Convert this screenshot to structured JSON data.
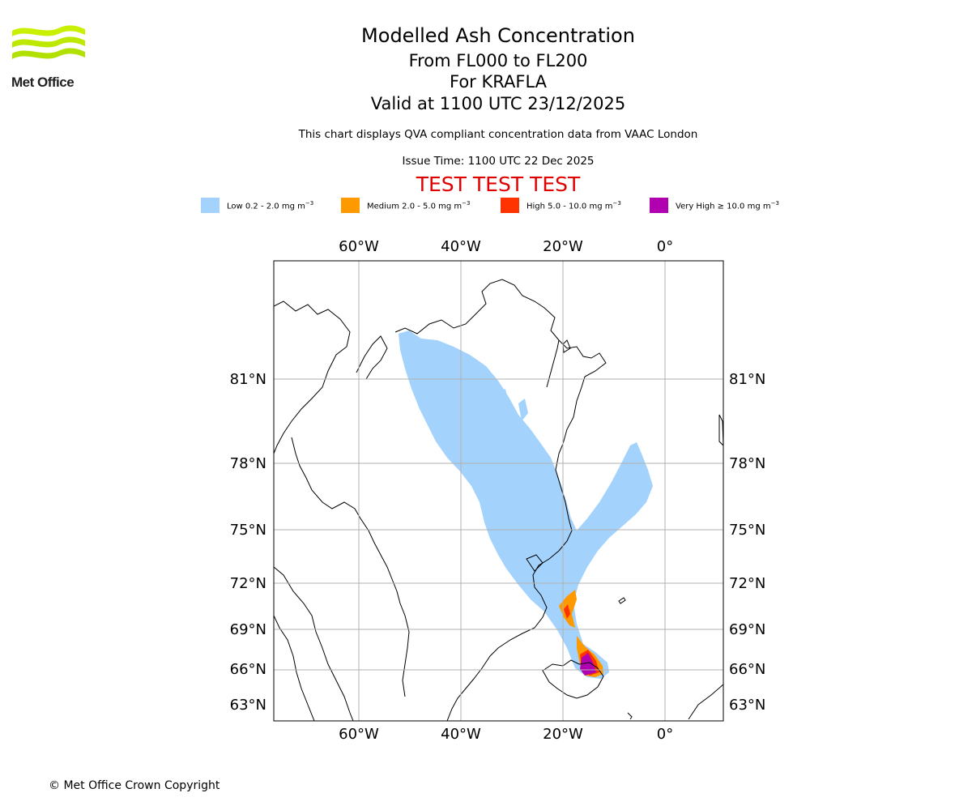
{
  "logo": {
    "text": "Met Office",
    "colors": [
      "#c8f000",
      "#a6d400"
    ]
  },
  "header": {
    "title": "Modelled Ash Concentration",
    "levels": "From FL000 to FL200",
    "volcano": "For KRAFLA",
    "valid": "Valid at 1100 UTC 23/12/2025",
    "description": "This chart displays QVA compliant concentration data from VAAC London",
    "issue_time": "Issue Time: 1100 UTC 22 Dec 2025",
    "test_banner": "TEST TEST TEST"
  },
  "legend": [
    {
      "label": "Low 0.2 - 2.0 mg m",
      "unit_exp": "−3",
      "color": "#a3d2fc"
    },
    {
      "label": "Medium 2.0 - 5.0 mg m",
      "unit_exp": "−3",
      "color": "#ff9900"
    },
    {
      "label": "High 5.0 - 10.0 mg m",
      "unit_exp": "−3",
      "color": "#ff3300"
    },
    {
      "label": "Very High  ≥  10.0 mg m",
      "unit_exp": "−3",
      "color": "#b000b0"
    }
  ],
  "map": {
    "lon_ticks": [
      "60°W",
      "40°W",
      "20°W",
      "0°"
    ],
    "lat_ticks": [
      "81°N",
      "78°N",
      "75°N",
      "72°N",
      "69°N",
      "66°N",
      "63°N"
    ]
  },
  "footer": {
    "copyright": "© Met Office Crown Copyright"
  }
}
